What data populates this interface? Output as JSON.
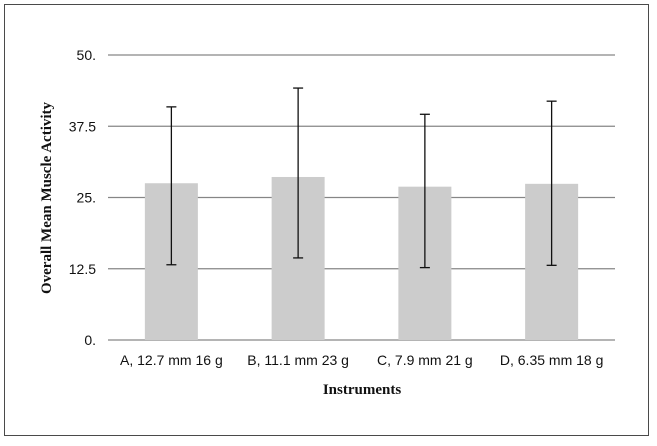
{
  "chart_data": {
    "type": "bar",
    "title": "",
    "xlabel": "Instruments",
    "ylabel": "Overall Mean Muscle Activity",
    "categories": [
      "A, 12.7 mm 16 g",
      "B, 11.1 mm 23 g",
      "C, 7.9 mm 21 g",
      "D, 6.35 mm 18 g"
    ],
    "values": [
      27.5,
      28.6,
      26.9,
      27.4
    ],
    "error_upper": [
      40.9,
      44.2,
      39.6,
      41.9
    ],
    "error_lower": [
      13.2,
      14.4,
      12.7,
      13.1
    ],
    "yticks": [
      "0.",
      "12.5",
      "25.",
      "37.5",
      "50."
    ],
    "ylim": [
      0,
      50
    ],
    "grid": true,
    "legend": "none",
    "bar_color": "#cccccc",
    "grid_color": "#868686",
    "error_bar_color": "#111111"
  }
}
